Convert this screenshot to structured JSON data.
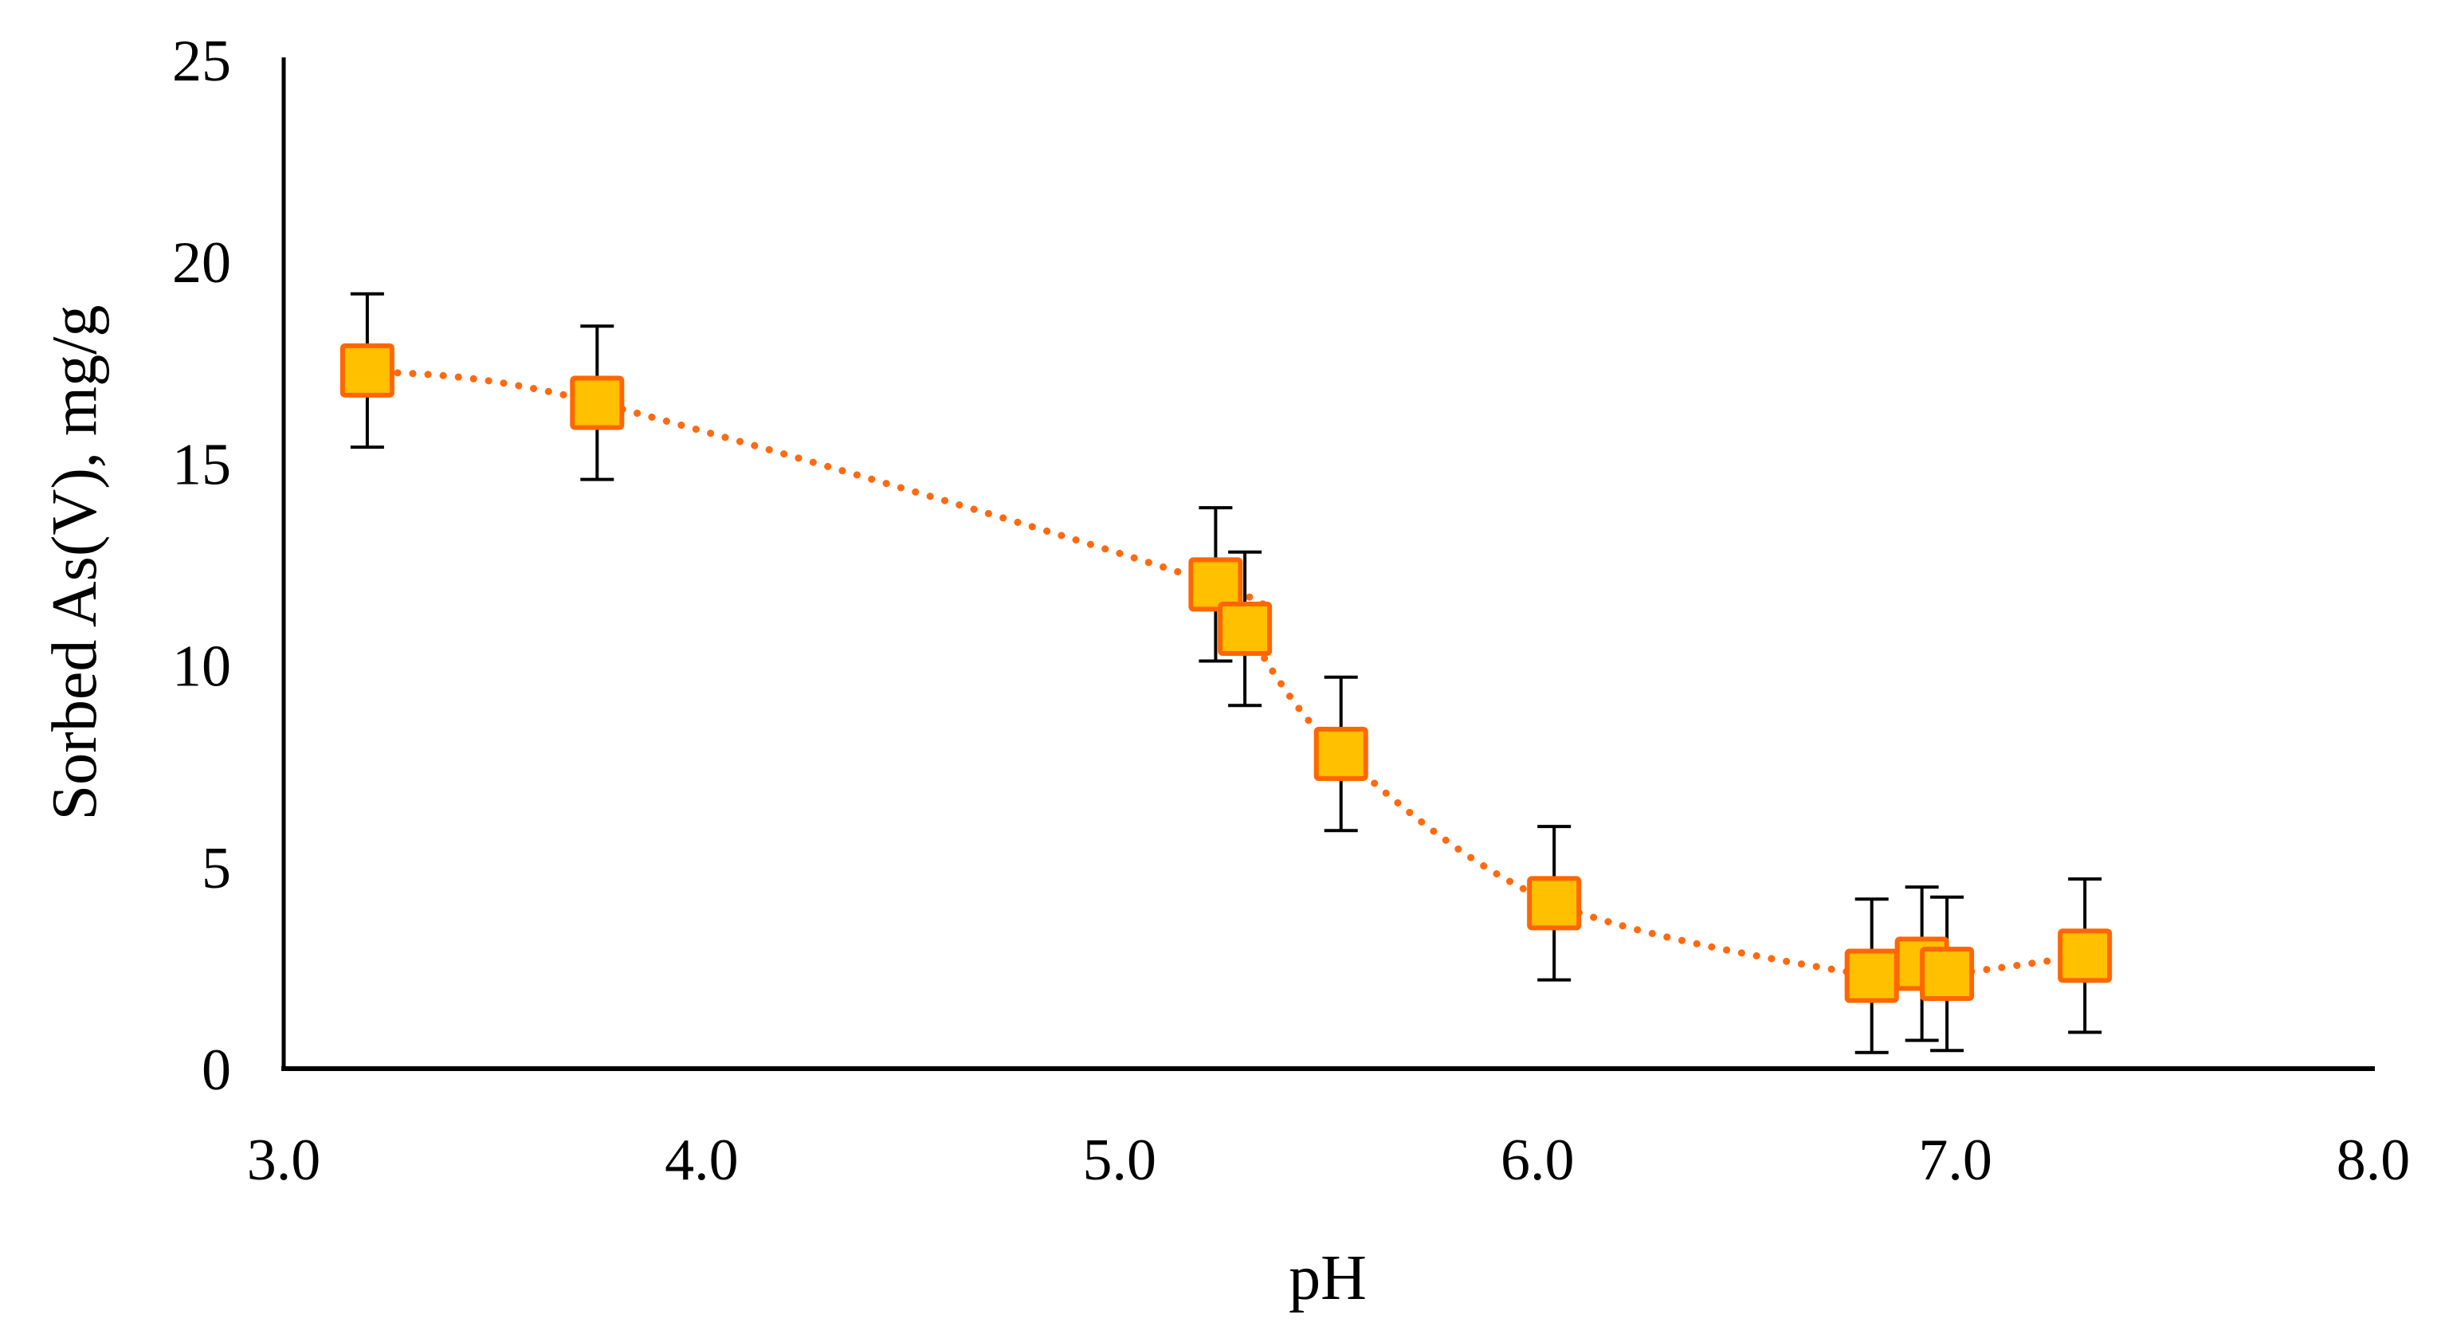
{
  "chart_data": {
    "type": "scatter",
    "title": "",
    "xlabel": "pH",
    "ylabel": "Sorbed As(V), mg/g",
    "xlim": [
      3.0,
      8.0
    ],
    "ylim": [
      0,
      25
    ],
    "xticks": [
      "3.0",
      "4.0",
      "5.0",
      "6.0",
      "7.0",
      "8.0"
    ],
    "yticks": [
      "0",
      "5",
      "10",
      "15",
      "20",
      "25"
    ],
    "grid": false,
    "legend": "none",
    "marker": "square",
    "line_style": "dotted smoothed",
    "colors": {
      "marker_fill": "#FFC000",
      "marker_edge": "#FF6600",
      "line": "#FF6A10",
      "error_bar": "#000000"
    },
    "series": [
      {
        "x": [
          3.2,
          3.75,
          5.23,
          5.3,
          5.53,
          6.04,
          6.8,
          6.92,
          6.98,
          7.31
        ],
        "y": [
          17.3,
          16.5,
          12.0,
          10.9,
          7.8,
          4.1,
          2.3,
          2.6,
          2.35,
          2.8
        ],
        "error": [
          1.9,
          1.9,
          1.9,
          1.9,
          1.9,
          1.9,
          1.9,
          1.9,
          1.9,
          1.9
        ]
      }
    ]
  }
}
